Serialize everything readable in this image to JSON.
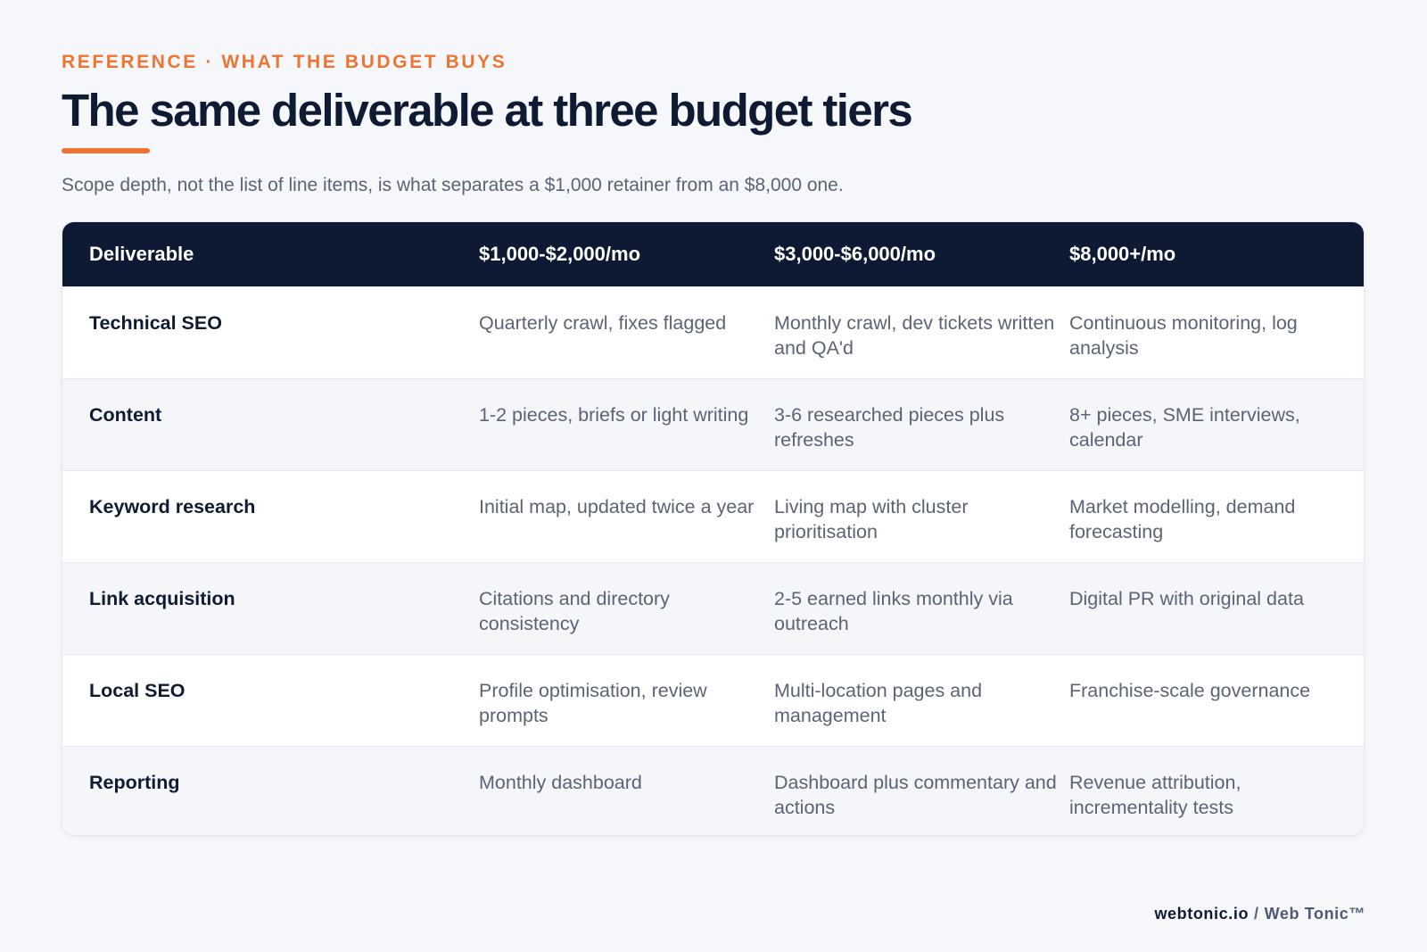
{
  "header": {
    "eyebrow": "REFERENCE · WHAT THE BUDGET BUYS",
    "title": "The same deliverable at three budget tiers",
    "subtitle": "Scope depth, not the list of line items, is what separates a $1,000 retainer from an $8,000 one."
  },
  "table": {
    "columns": [
      "Deliverable",
      "$1,000-$2,000/mo",
      "$3,000-$6,000/mo",
      "$8,000+/mo"
    ],
    "rows": [
      [
        "Technical SEO",
        "Quarterly crawl, fixes flagged",
        "Monthly crawl, dev tickets written and QA'd",
        "Continuous monitoring, log analysis"
      ],
      [
        "Content",
        "1-2 pieces, briefs or light writing",
        "3-6 researched pieces plus refreshes",
        "8+ pieces, SME interviews, calendar"
      ],
      [
        "Keyword research",
        "Initial map, updated twice a year",
        "Living map with cluster prioritisation",
        "Market modelling, demand forecasting"
      ],
      [
        "Link acquisition",
        "Citations and directory consistency",
        "2-5 earned links monthly via outreach",
        "Digital PR with original data"
      ],
      [
        "Local SEO",
        "Profile optimisation, review prompts",
        "Multi-location pages and management",
        "Franchise-scale governance"
      ],
      [
        "Reporting",
        "Monthly dashboard",
        "Dashboard plus commentary and actions",
        "Revenue attribution, incrementality tests"
      ]
    ]
  },
  "footer": {
    "domain": "webtonic.io",
    "separator": "/",
    "brand": "Web Tonic™"
  },
  "colors": {
    "accent": "#ee7433",
    "navy": "#0e1a33",
    "muted_text": "#5b6474",
    "background": "#f5f7fa"
  }
}
